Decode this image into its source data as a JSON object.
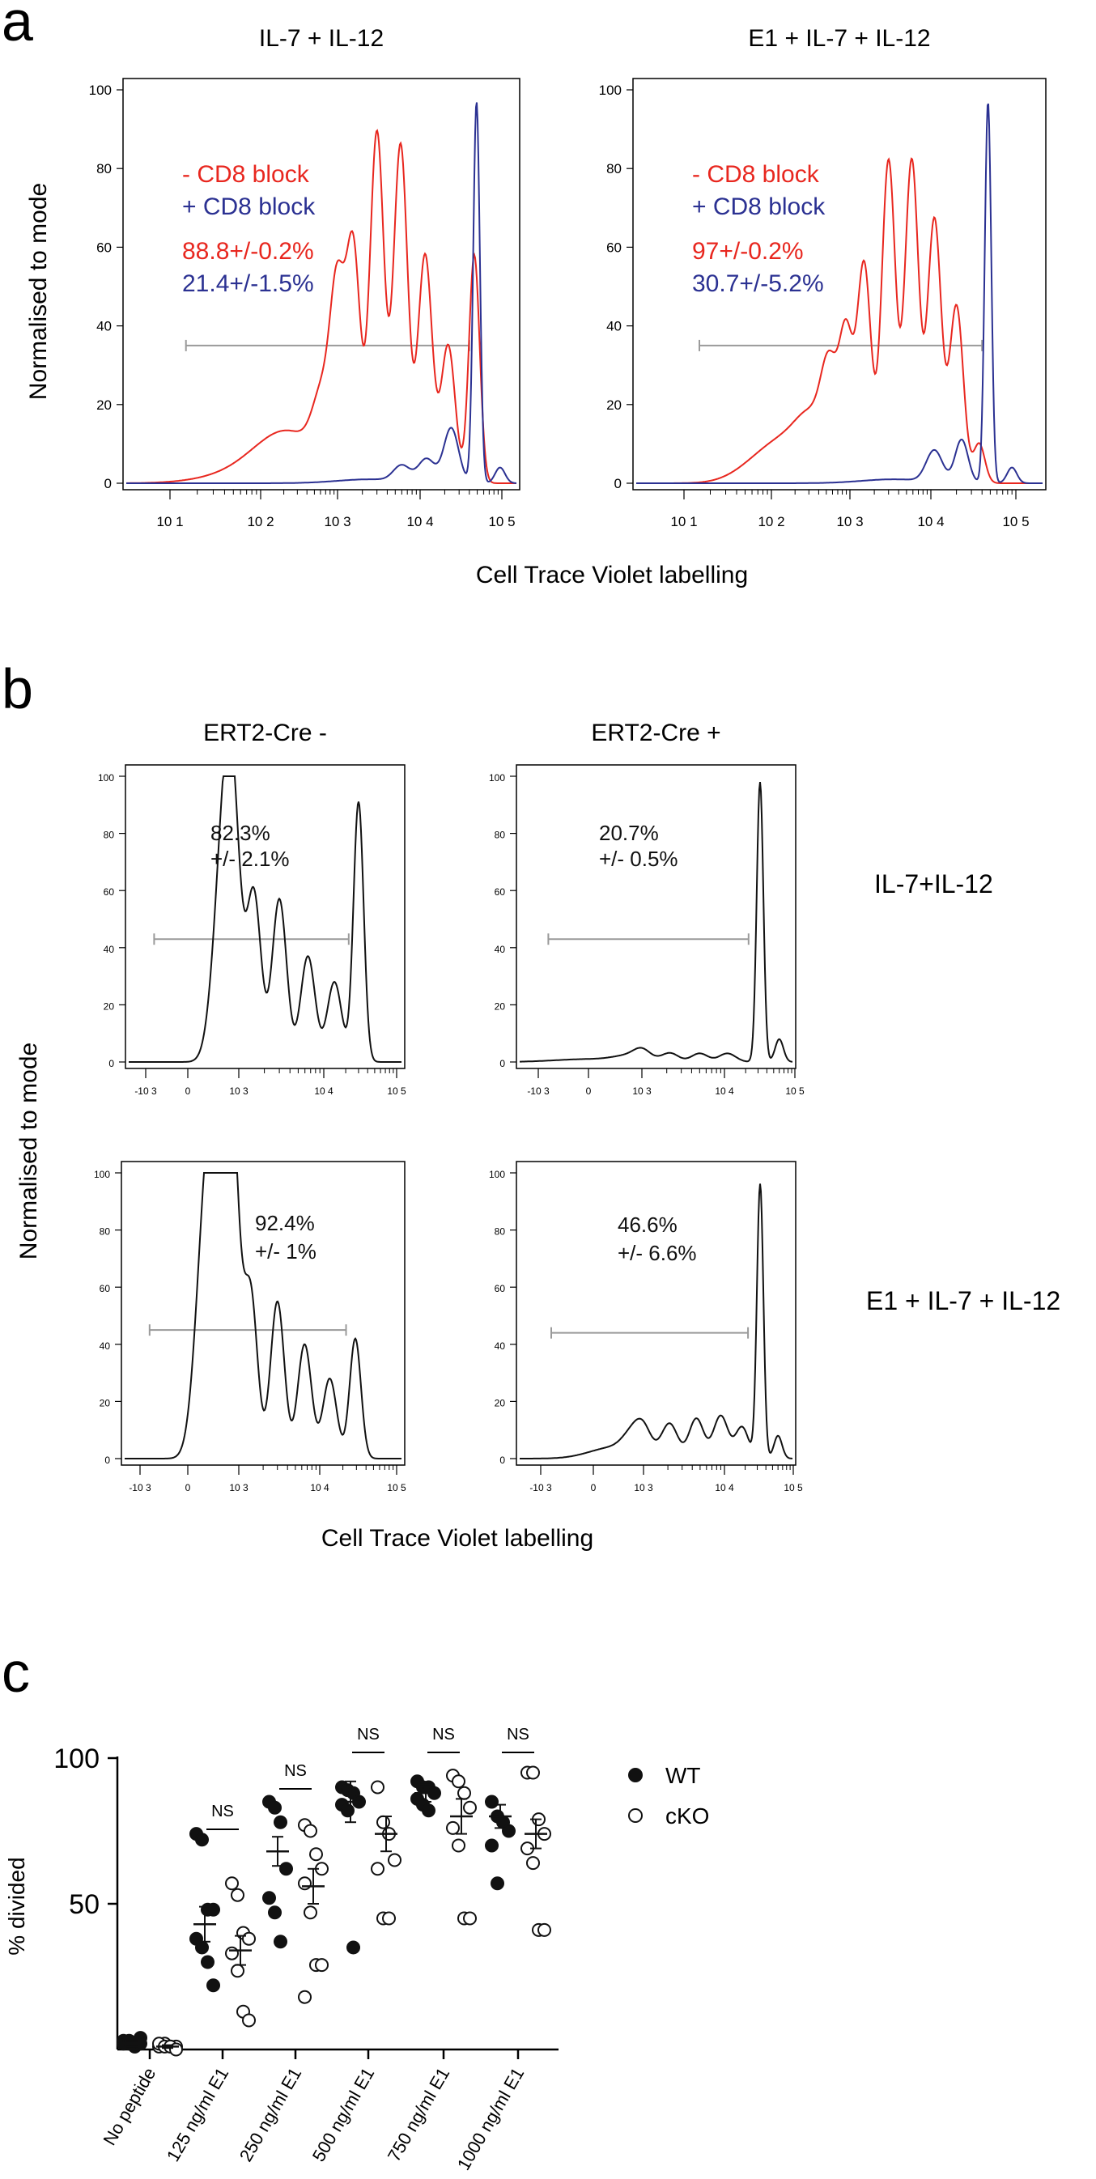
{
  "panels": {
    "a": "a",
    "b": "b",
    "c": "c"
  },
  "chart_data": [
    {
      "id": "a1",
      "type": "line",
      "title": "IL-7 + IL-12",
      "xscale": "log",
      "xticks": [
        "10 1",
        "10 2",
        "10 3",
        "10 4",
        "10 5"
      ],
      "yticks": [
        "0",
        "20",
        "40",
        "60",
        "80",
        "100"
      ],
      "ylim": [
        0,
        100
      ],
      "annotations": {
        "legend": [
          "- CD8 block",
          "+ CD8 block"
        ],
        "values": [
          "88.8+/-0.2%",
          "21.4+/-1.5%"
        ],
        "colors": [
          "#e8271f",
          "#2b3192"
        ]
      },
      "gate": {
        "from": 15,
        "to": 40000,
        "y": 35
      },
      "series": [
        {
          "name": "- CD8 block",
          "color": "#e8271f",
          "peaks": [
            [
              55,
              2,
              0.45
            ],
            [
              130,
              5,
              0.35
            ],
            [
              300,
              9,
              0.35
            ],
            [
              650,
              17,
              0.12
            ],
            [
              1000,
              42,
              0.085
            ],
            [
              1550,
              58,
              0.085
            ],
            [
              3000,
              89,
              0.085
            ],
            [
              5800,
              86,
              0.085
            ],
            [
              11500,
              58,
              0.085
            ],
            [
              22000,
              35,
              0.085
            ],
            [
              46000,
              58,
              0.065
            ]
          ]
        },
        {
          "name": "+ CD8 block",
          "color": "#2b3192",
          "peaks": [
            [
              2500,
              1,
              0.4
            ],
            [
              6000,
              4,
              0.1
            ],
            [
              12000,
              6,
              0.1
            ],
            [
              24000,
              14,
              0.09
            ],
            [
              49000,
              97,
              0.04
            ],
            [
              95000,
              4,
              0.06
            ]
          ]
        }
      ]
    },
    {
      "id": "a2",
      "type": "line",
      "title": "E1 + IL-7 + IL-12",
      "xscale": "log",
      "xticks": [
        "10 1",
        "10 2",
        "10 3",
        "10 4",
        "10 5"
      ],
      "yticks": [
        "0",
        "20",
        "40",
        "60",
        "80",
        "100"
      ],
      "ylim": [
        0,
        100
      ],
      "annotations": {
        "legend": [
          "- CD8 block",
          "+ CD8 block"
        ],
        "values": [
          "97+/-0.2%",
          "30.7+/-5.2%"
        ],
        "colors": [
          "#e8271f",
          "#2b3192"
        ]
      },
      "gate": {
        "from": 15,
        "to": 40000,
        "y": 35
      },
      "series": [
        {
          "name": "- CD8 block",
          "color": "#e8271f",
          "peaks": [
            [
              70,
              4,
              0.3
            ],
            [
              170,
              9,
              0.3
            ],
            [
              350,
              12,
              0.2
            ],
            [
              550,
              22,
              0.1
            ],
            [
              900,
              35,
              0.085
            ],
            [
              1500,
              55,
              0.085
            ],
            [
              3000,
              82,
              0.085
            ],
            [
              5800,
              82,
              0.085
            ],
            [
              11000,
              67,
              0.085
            ],
            [
              20000,
              45,
              0.085
            ],
            [
              37000,
              10,
              0.07
            ]
          ]
        },
        {
          "name": "+ CD8 block",
          "color": "#2b3192",
          "peaks": [
            [
              3500,
              1,
              0.4
            ],
            [
              11000,
              8,
              0.1
            ],
            [
              23000,
              11,
              0.08
            ],
            [
              47000,
              97,
              0.04
            ],
            [
              90000,
              4,
              0.06
            ]
          ]
        }
      ]
    },
    {
      "id": "b1",
      "type": "line",
      "title": "ERT2-Cre -",
      "xscale": "biexponential",
      "xticks": [
        "-10 3",
        "0",
        "10 3",
        "10 4",
        "10 5"
      ],
      "yticks": [
        "0",
        "20",
        "40",
        "60",
        "80",
        "100"
      ],
      "ylim": [
        0,
        100
      ],
      "annotations": {
        "values": [
          "82.3%",
          "+/- 2.1%"
        ],
        "colors": [
          "#111111"
        ]
      },
      "gate": {
        "from": -800,
        "to": 22000,
        "y": 43
      },
      "series": [
        {
          "name": "",
          "color": "#111111",
          "peaks": [
            [
              120,
              20,
              0.1
            ],
            [
              200,
              33,
              0.09
            ],
            [
              380,
              51,
              0.085
            ],
            [
              700,
              55,
              0.085
            ],
            [
              1500,
              59,
              0.085
            ],
            [
              3000,
              57,
              0.085
            ],
            [
              6500,
              37,
              0.085
            ],
            [
              14000,
              28,
              0.085
            ],
            [
              30000,
              91,
              0.06
            ]
          ]
        }
      ]
    },
    {
      "id": "b2",
      "type": "line",
      "title": "ERT2-Cre +",
      "xscale": "biexponential",
      "xticks": [
        "-10 3",
        "0",
        "10 3",
        "10 4",
        "10 5"
      ],
      "yticks": [
        "0",
        "20",
        "40",
        "60",
        "80",
        "100"
      ],
      "ylim": [
        0,
        100
      ],
      "row_label": "IL-7+IL-12",
      "annotations": {
        "values": [
          "20.7%",
          "+/- 0.5%"
        ],
        "colors": [
          "#111111"
        ]
      },
      "gate": {
        "from": -800,
        "to": 22000,
        "y": 43
      },
      "series": [
        {
          "name": "",
          "color": "#111111",
          "peaks": [
            [
              0,
              1,
              0.4
            ],
            [
              400,
              2,
              0.2
            ],
            [
              1000,
              3,
              0.1
            ],
            [
              2200,
              3,
              0.1
            ],
            [
              5000,
              3,
              0.1
            ],
            [
              11000,
              3,
              0.1
            ],
            [
              32000,
              98,
              0.04
            ],
            [
              60000,
              8,
              0.05
            ]
          ]
        }
      ]
    },
    {
      "id": "b3",
      "type": "line",
      "title": "",
      "xscale": "biexponential",
      "xticks": [
        "-10 3",
        "0",
        "10 3",
        "10 4",
        "10 5"
      ],
      "yticks": [
        "0",
        "20",
        "40",
        "60",
        "80",
        "100"
      ],
      "ylim": [
        0,
        100
      ],
      "annotations": {
        "values": [
          "92.4%",
          "+/- 1%"
        ],
        "colors": [
          "#111111"
        ]
      },
      "gate": {
        "from": -800,
        "to": 22000,
        "y": 45
      },
      "series": [
        {
          "name": "",
          "color": "#111111",
          "peaks": [
            [
              40,
              83,
              0.12
            ],
            [
              150,
              90,
              0.1
            ],
            [
              330,
              82,
              0.085
            ],
            [
              700,
              63,
              0.085
            ],
            [
              1400,
              57,
              0.085
            ],
            [
              3000,
              55,
              0.085
            ],
            [
              6500,
              40,
              0.085
            ],
            [
              13500,
              28,
              0.085
            ],
            [
              29000,
              42,
              0.07
            ]
          ]
        }
      ]
    },
    {
      "id": "b4",
      "type": "line",
      "title": "",
      "xscale": "biexponential",
      "xticks": [
        "-10 3",
        "0",
        "10 3",
        "10 4",
        "10 5"
      ],
      "yticks": [
        "0",
        "20",
        "40",
        "60",
        "80",
        "100"
      ],
      "ylim": [
        0,
        100
      ],
      "row_label": "E1 + IL-7 + IL-12",
      "annotations": {
        "values": [
          "46.6%",
          "+/- 6.6%"
        ],
        "colors": [
          "#111111"
        ]
      },
      "gate": {
        "from": -800,
        "to": 22000,
        "y": 44
      },
      "series": [
        {
          "name": "",
          "color": "#111111",
          "peaks": [
            [
              60,
              4,
              0.3
            ],
            [
              350,
              6,
              0.12
            ],
            [
              1000,
              8,
              0.1
            ],
            [
              2100,
              12,
              0.1
            ],
            [
              4500,
              14,
              0.09
            ],
            [
              9000,
              15,
              0.09
            ],
            [
              18000,
              11,
              0.08
            ],
            [
              33000,
              96,
              0.04
            ],
            [
              60000,
              8,
              0.05
            ]
          ]
        }
      ]
    },
    {
      "id": "c",
      "type": "scatter",
      "ylabel": "% divided",
      "yticks": [
        "50",
        "100"
      ],
      "ylim": [
        0,
        100
      ],
      "categories": [
        "No peptide",
        "125 ng/ml E1",
        "250 ng/ml E1",
        "500 ng/ml E1",
        "750 ng/ml E1",
        "1000 ng/ml E1"
      ],
      "significance": [
        "",
        "NS",
        "NS",
        "NS",
        "NS",
        "NS"
      ],
      "legend": [
        "WT",
        "cKO"
      ],
      "series": [
        {
          "name": "WT",
          "filled": true,
          "points": [
            [
              3,
              2,
              1,
              4,
              2,
              3,
              1,
              2
            ],
            [
              74,
              72,
              48,
              48,
              38,
              35,
              30,
              22
            ],
            [
              85,
              83,
              78,
              62,
              52,
              47,
              37
            ],
            [
              90,
              89,
              88,
              85,
              84,
              82,
              35
            ],
            [
              92,
              90,
              90,
              88,
              86,
              84,
              82
            ],
            [
              85,
              80,
              78,
              75,
              70,
              57
            ]
          ],
          "mean": [
            2,
            43,
            68,
            85,
            88,
            80
          ],
          "sem": [
            1,
            6,
            5,
            7,
            3,
            4
          ]
        },
        {
          "name": "cKO",
          "filled": false,
          "points": [
            [
              1,
              2,
              1,
              1,
              2,
              1,
              1,
              0
            ],
            [
              57,
              53,
              40,
              38,
              33,
              27,
              13,
              10
            ],
            [
              77,
              75,
              67,
              62,
              57,
              47,
              29,
              29,
              18
            ],
            [
              90,
              78,
              74,
              65,
              62,
              45,
              45
            ],
            [
              94,
              92,
              88,
              83,
              76,
              70,
              45,
              45
            ],
            [
              95,
              95,
              79,
              74,
              69,
              64,
              41,
              41
            ]
          ],
          "mean": [
            1,
            34,
            56,
            74,
            80,
            74
          ],
          "sem": [
            0.5,
            5,
            6,
            6,
            6,
            5
          ]
        }
      ]
    }
  ],
  "shared_labels": {
    "a_xlabel": "Cell Trace Violet labelling",
    "b_xlabel": "Cell Trace Violet labelling",
    "b_ylabel": "Normalised to mode",
    "a_ylabel": "Normalised to mode"
  }
}
